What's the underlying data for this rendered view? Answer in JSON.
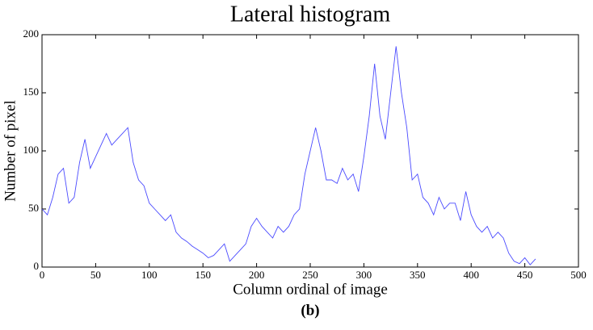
{
  "chart_data": {
    "type": "line",
    "title": "Lateral histogram",
    "xlabel": "Column ordinal of image",
    "ylabel": "Number of pixel",
    "caption": "(b)",
    "color": "#4a4aff",
    "x": [
      0,
      5,
      10,
      15,
      20,
      25,
      30,
      35,
      40,
      45,
      50,
      55,
      60,
      65,
      70,
      75,
      80,
      85,
      90,
      95,
      100,
      105,
      110,
      115,
      120,
      125,
      130,
      135,
      140,
      145,
      150,
      155,
      160,
      165,
      170,
      175,
      180,
      185,
      190,
      195,
      200,
      205,
      210,
      215,
      220,
      225,
      230,
      235,
      240,
      245,
      250,
      255,
      260,
      265,
      270,
      275,
      280,
      285,
      290,
      295,
      300,
      305,
      310,
      315,
      320,
      325,
      330,
      335,
      340,
      345,
      350,
      355,
      360,
      365,
      370,
      375,
      380,
      385,
      390,
      395,
      400,
      405,
      410,
      415,
      420,
      425,
      430,
      435,
      440,
      445,
      450,
      455,
      460
    ],
    "values": [
      50,
      45,
      60,
      80,
      85,
      55,
      60,
      90,
      110,
      85,
      95,
      105,
      115,
      105,
      110,
      115,
      120,
      90,
      75,
      70,
      55,
      50,
      45,
      40,
      45,
      30,
      25,
      22,
      18,
      15,
      12,
      8,
      10,
      15,
      20,
      5,
      10,
      15,
      20,
      35,
      42,
      35,
      30,
      25,
      35,
      30,
      35,
      45,
      50,
      80,
      100,
      120,
      100,
      75,
      75,
      72,
      85,
      75,
      80,
      65,
      95,
      130,
      175,
      130,
      110,
      150,
      190,
      150,
      120,
      75,
      80,
      60,
      55,
      45,
      60,
      50,
      55,
      55,
      40,
      65,
      45,
      35,
      30,
      35,
      25,
      30,
      25,
      12,
      5,
      3,
      8,
      2,
      7
    ],
    "xlim": [
      0,
      500
    ],
    "xticks": [
      0,
      50,
      100,
      150,
      200,
      250,
      300,
      350,
      400,
      450,
      500
    ],
    "ylim": [
      0,
      200
    ],
    "yticks": [
      0,
      50,
      100,
      150,
      200
    ]
  }
}
